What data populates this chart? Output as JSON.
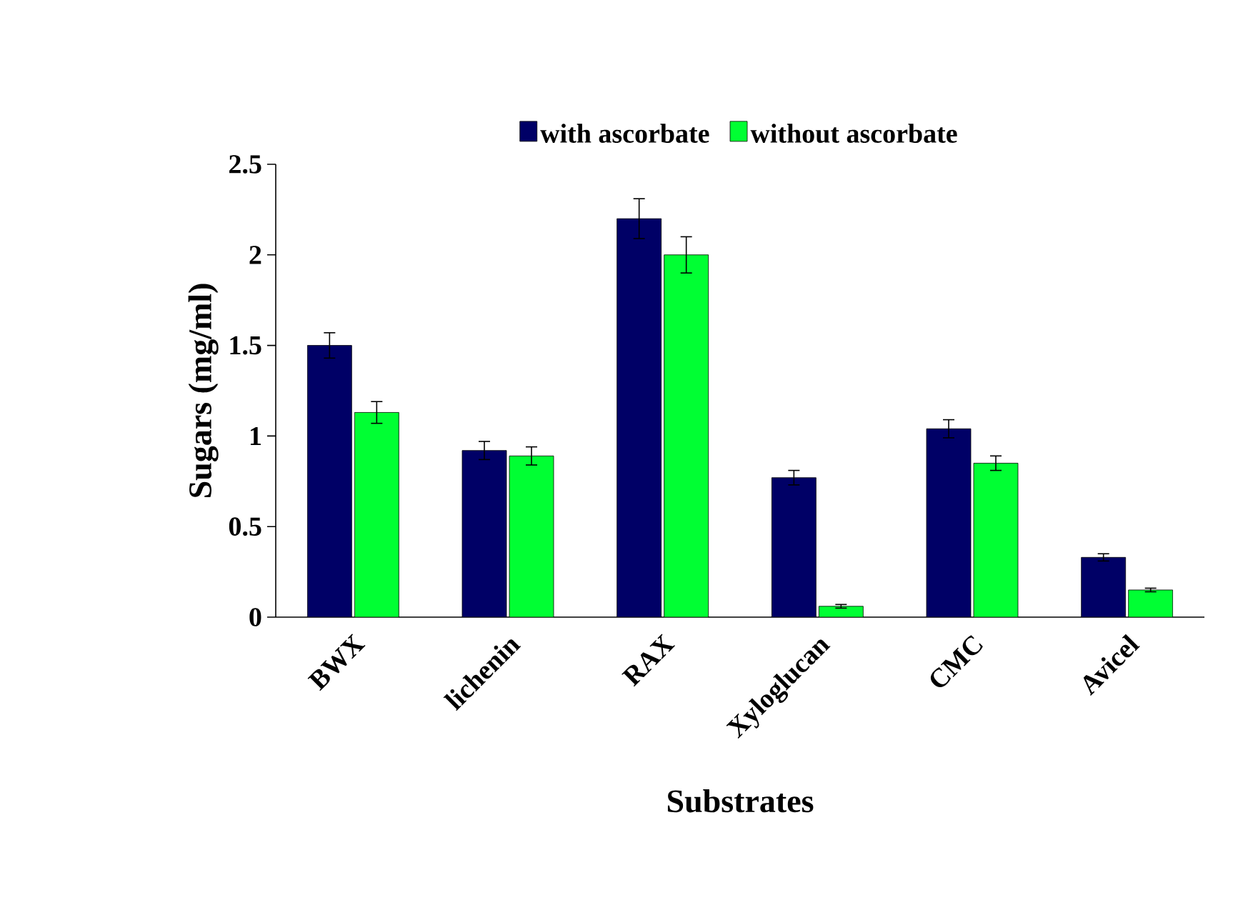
{
  "chart_data": {
    "type": "bar",
    "xlabel": "Substrates",
    "ylabel": "Sugars (mg/ml)",
    "categories": [
      "BWX",
      "lichenin",
      "RAX",
      "Xyloglucan",
      "CMC",
      "Avicel"
    ],
    "series": [
      {
        "name": "with ascorbate",
        "color": "#000066",
        "values": [
          1.5,
          0.92,
          2.2,
          0.77,
          1.04,
          0.33
        ],
        "errors": [
          0.07,
          0.05,
          0.11,
          0.04,
          0.05,
          0.02
        ]
      },
      {
        "name": "without ascorbate",
        "color": "#00ff33",
        "values": [
          1.13,
          0.89,
          2.0,
          0.06,
          0.85,
          0.15
        ],
        "errors": [
          0.06,
          0.05,
          0.1,
          0.01,
          0.04,
          0.01
        ]
      }
    ],
    "ylim": [
      0,
      2.5
    ],
    "yticks": [
      0,
      0.5,
      1,
      1.5,
      2,
      2.5
    ],
    "legend": "top",
    "grid": false
  }
}
